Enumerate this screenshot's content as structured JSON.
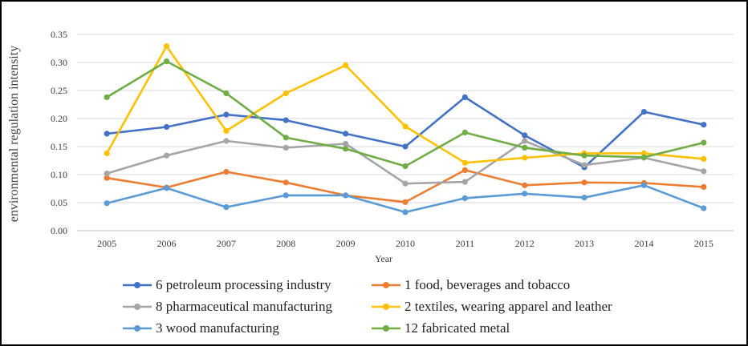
{
  "chart_data": {
    "type": "line",
    "title": "",
    "xlabel": "Year",
    "ylabel": "environmental regulation intensity",
    "ylim": [
      0,
      0.35
    ],
    "yticks": [
      "0.00",
      "0.05",
      "0.10",
      "0.15",
      "0.20",
      "0.25",
      "0.30",
      "0.35"
    ],
    "categories": [
      "2005",
      "2006",
      "2007",
      "2008",
      "2009",
      "2010",
      "2011",
      "2012",
      "2013",
      "2014",
      "2015"
    ],
    "grid": true,
    "legend_position": "bottom",
    "series": [
      {
        "name": "6 petroleum processing industry",
        "color": "#4472C4",
        "values": [
          0.173,
          0.185,
          0.207,
          0.197,
          0.173,
          0.15,
          0.238,
          0.17,
          0.113,
          0.212,
          0.189
        ]
      },
      {
        "name": "1 food, beverages and tobacco",
        "color": "#ED7D31",
        "values": [
          0.094,
          0.077,
          0.105,
          0.086,
          0.063,
          0.051,
          0.108,
          0.081,
          0.086,
          0.085,
          0.078
        ]
      },
      {
        "name": "8 pharmaceutical manufacturing",
        "color": "#A5A5A5",
        "values": [
          0.102,
          0.134,
          0.16,
          0.148,
          0.155,
          0.084,
          0.087,
          0.16,
          0.117,
          0.13,
          0.106
        ]
      },
      {
        "name": "2 textiles, wearing apparel and leather",
        "color": "#FFC000",
        "values": [
          0.138,
          0.329,
          0.178,
          0.245,
          0.295,
          0.186,
          0.121,
          0.13,
          0.138,
          0.138,
          0.128
        ]
      },
      {
        "name": "3 wood manufacturing",
        "color": "#5B9BD5",
        "values": [
          0.049,
          0.076,
          0.042,
          0.063,
          0.063,
          0.033,
          0.058,
          0.066,
          0.059,
          0.081,
          0.04
        ]
      },
      {
        "name": "12 fabricated metal",
        "color": "#70AD47",
        "values": [
          0.238,
          0.302,
          0.245,
          0.166,
          0.146,
          0.115,
          0.175,
          0.148,
          0.134,
          0.131,
          0.157
        ]
      }
    ]
  }
}
